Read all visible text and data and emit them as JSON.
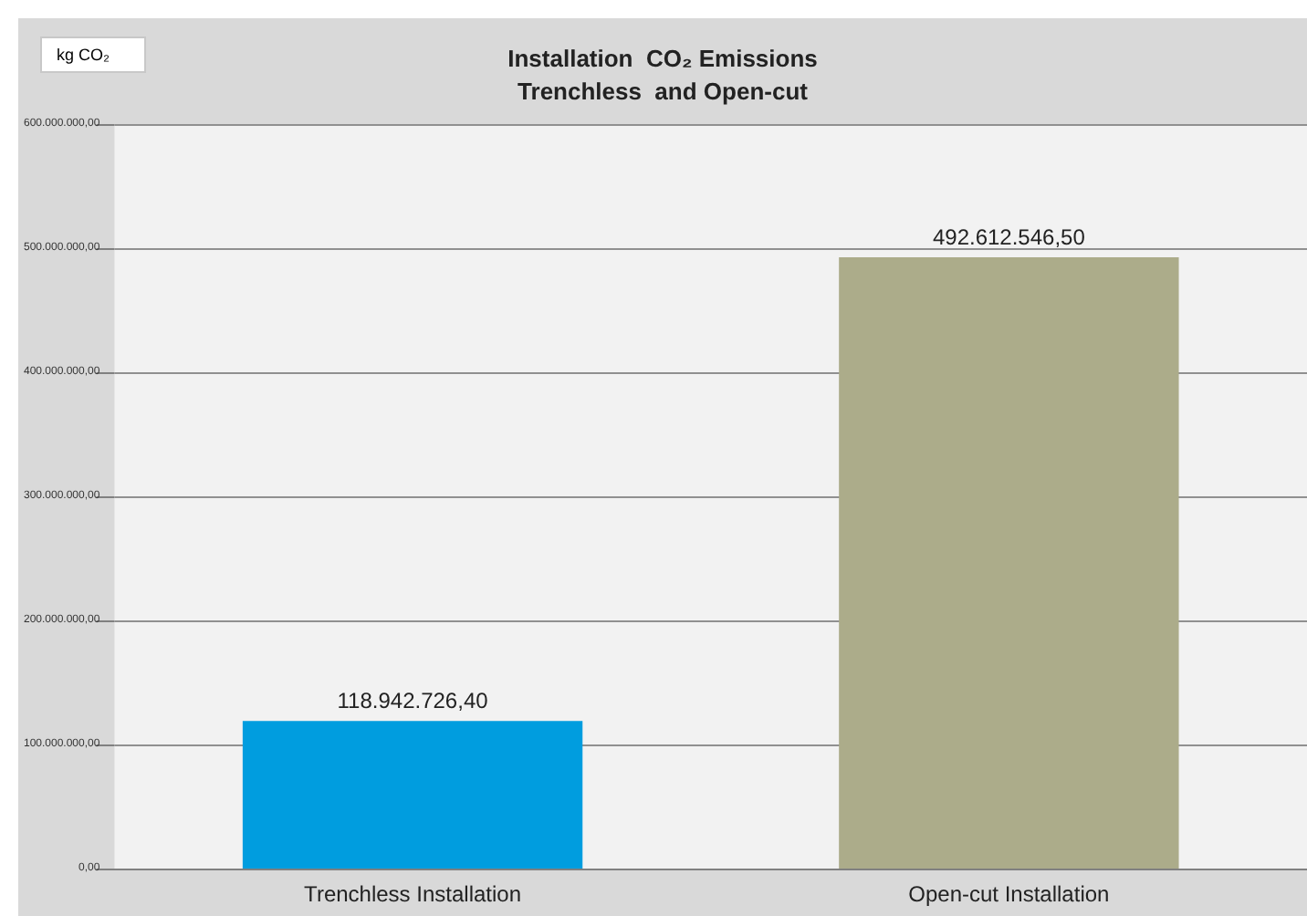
{
  "chart_data": {
    "type": "bar",
    "title": "Installation  CO₂ Emissions\nTrenchless  and Open-cut",
    "ylabel": "kg CO₂",
    "categories": [
      "Trenchless Installation",
      "Open-cut Installation"
    ],
    "values": [
      118942726.4,
      492612546.5
    ],
    "colors": [
      "#009ddf",
      "#acac8a"
    ],
    "value_labels": [
      "118.942.726,40",
      "492.612.546,50"
    ],
    "ylim": [
      0,
      600000000
    ],
    "yticks": [
      {
        "value": 0,
        "label": "0,00"
      },
      {
        "value": 100000000,
        "label": "100.000.000,00"
      },
      {
        "value": 200000000,
        "label": "200.000.000,00"
      },
      {
        "value": 300000000,
        "label": "300.000.000,00"
      },
      {
        "value": 400000000,
        "label": "400.000.000,00"
      },
      {
        "value": 500000000,
        "label": "500.000.000,00"
      },
      {
        "value": 600000000,
        "label": "600.000.000,00"
      }
    ],
    "grid": "y"
  }
}
